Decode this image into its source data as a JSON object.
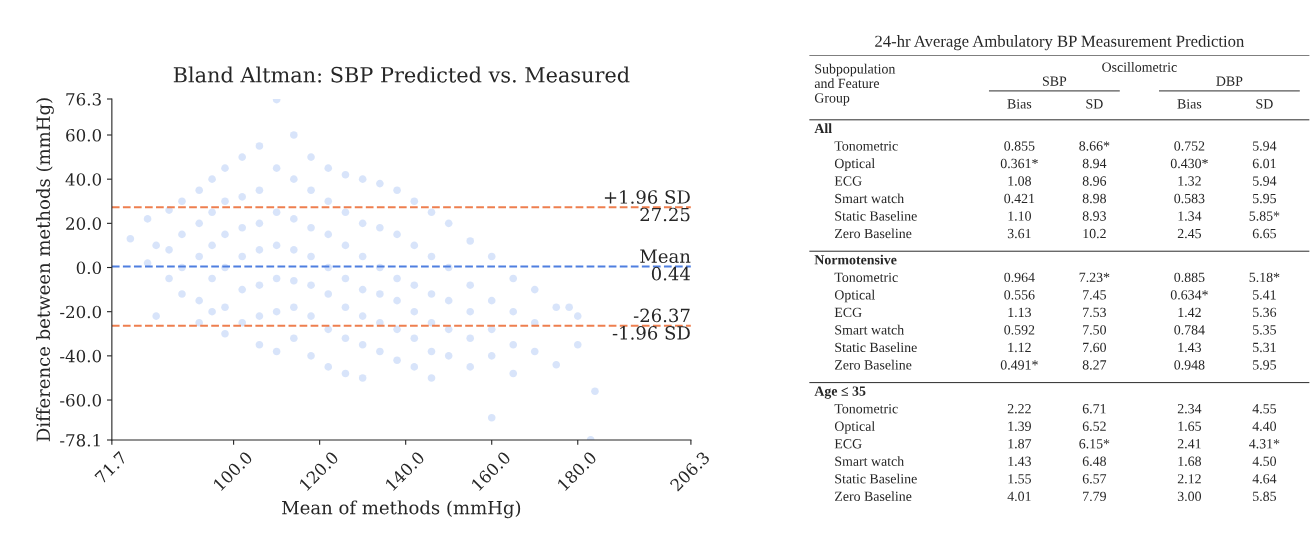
{
  "chart_data": [
    {
      "type": "scatter",
      "title": "Bland Altman: SBP Predicted vs. Measured",
      "xlabel": "Mean of methods (mmHg)",
      "ylabel": "Difference between methods (mmHg)",
      "series": [
        {
          "color": "#6495ed",
          "x": [
            76,
            80,
            80,
            82,
            82,
            85,
            85,
            85,
            88,
            88,
            88,
            88,
            92,
            92,
            92,
            92,
            92,
            95,
            95,
            95,
            95,
            95,
            98,
            98,
            98,
            98,
            98,
            98,
            102,
            102,
            102,
            102,
            102,
            102,
            106,
            106,
            106,
            106,
            106,
            106,
            106,
            110,
            110,
            110,
            110,
            110,
            110,
            110,
            114,
            114,
            114,
            114,
            114,
            114,
            114,
            118,
            118,
            118,
            118,
            118,
            118,
            118,
            122,
            122,
            122,
            122,
            122,
            122,
            122,
            126,
            126,
            126,
            126,
            126,
            126,
            126,
            130,
            130,
            130,
            130,
            130,
            130,
            130,
            134,
            134,
            134,
            134,
            134,
            134,
            138,
            138,
            138,
            138,
            138,
            138,
            142,
            142,
            142,
            142,
            142,
            142,
            146,
            146,
            146,
            146,
            146,
            146,
            150,
            150,
            150,
            150,
            150,
            155,
            155,
            155,
            155,
            155,
            160,
            160,
            160,
            160,
            160,
            165,
            165,
            165,
            165,
            170,
            170,
            170,
            175,
            175,
            180,
            180,
            183,
            184,
            178
          ],
          "values": [
            13,
            2,
            22,
            -22,
            10,
            26,
            -5,
            8,
            30,
            -12,
            15,
            0,
            35,
            20,
            -15,
            5,
            -25,
            40,
            25,
            10,
            -5,
            -20,
            45,
            30,
            15,
            0,
            -18,
            -30,
            50,
            32,
            18,
            5,
            -10,
            -25,
            55,
            35,
            20,
            8,
            -8,
            -22,
            -35,
            76,
            45,
            25,
            10,
            -5,
            -20,
            -38,
            60,
            40,
            22,
            8,
            -6,
            -18,
            -32,
            50,
            35,
            18,
            5,
            -8,
            -22,
            -40,
            45,
            30,
            15,
            0,
            -12,
            -28,
            -45,
            42,
            25,
            10,
            -5,
            -18,
            -32,
            -48,
            40,
            20,
            5,
            -10,
            -22,
            -35,
            -50,
            38,
            18,
            0,
            -12,
            -25,
            -38,
            35,
            15,
            -5,
            -15,
            -28,
            -42,
            30,
            10,
            -8,
            -20,
            -32,
            -45,
            25,
            5,
            -12,
            -25,
            -38,
            -50,
            20,
            0,
            -15,
            -28,
            -40,
            12,
            -8,
            -20,
            -32,
            -45,
            5,
            -15,
            -28,
            -40,
            -68,
            -5,
            -20,
            -35,
            -48,
            -10,
            -25,
            -38,
            -18,
            -44,
            -22,
            -35,
            -78,
            -56,
            -18
          ]
        }
      ],
      "xlim": [
        71.7,
        206.3
      ],
      "xticks": [
        71.7,
        {
          "value": 100,
          "label": "100.0"
        },
        {
          "value": 120,
          "label": "120.0"
        },
        {
          "value": 140,
          "label": "140.0"
        },
        {
          "value": 160,
          "label": "160.0"
        },
        {
          "value": 180,
          "label": "180.0"
        },
        206.3
      ],
      "ylim": [
        -78.1,
        76.3
      ],
      "yticks": [
        -78.1,
        {
          "value": -60,
          "label": "-60.0"
        },
        {
          "value": -40,
          "label": "-40.0"
        },
        {
          "value": -20,
          "label": "-20.0"
        },
        {
          "value": 0,
          "label": "0.0"
        },
        {
          "value": 20,
          "label": "20.0"
        },
        {
          "value": 40,
          "label": "40.0"
        },
        {
          "value": 60,
          "label": "60.0"
        },
        76.3
      ],
      "ref_lines": [
        {
          "axis": "y",
          "value": 27.25,
          "label": "+1.96 SD",
          "color": "#ee7f4f",
          "line_style": "dashed"
        },
        {
          "axis": "y",
          "value": 0.44,
          "label": "Mean",
          "color": "#4f7fe0",
          "line_style": "dashed"
        },
        {
          "axis": "y",
          "value": -26.37,
          "label": "-26.37",
          "color": "#ee7f4f",
          "line_style": "dashed"
        }
      ],
      "annotations": [
        {
          "text": "27.25",
          "y": 27.25
        },
        {
          "text": "0.44",
          "y": 0.44
        },
        {
          "text": "-1.96 SD",
          "y": -26.37
        }
      ]
    },
    {
      "type": "other",
      "title": "24-hr Average Ambulatory BP Measurement Prediction",
      "annotations": [
        "Subpopulation\nand Feature\nGroup",
        "Oscillometric",
        "SBP",
        "DBP",
        "Bias",
        "SD",
        "Bias",
        "SD",
        "All",
        "Tonometric",
        "0.855",
        "8.66*",
        "0.752",
        "5.94",
        "Optical",
        "0.361*",
        "8.94",
        "0.430*",
        "6.01",
        "ECG",
        "1.08",
        "8.96",
        "1.32",
        "5.94",
        "Smart watch",
        "0.421",
        "8.98",
        "0.583",
        "5.95",
        "Static Baseline",
        "1.10",
        "8.93",
        "1.34",
        "5.85*",
        "Zero Baseline",
        "3.61",
        "10.2",
        "2.45",
        "6.65",
        "Normotensive",
        "Tonometric",
        "0.964",
        "7.23*",
        "0.885",
        "5.18*",
        "Optical",
        "0.556",
        "7.45",
        "0.634*",
        "5.41",
        "ECG",
        "1.13",
        "7.53",
        "1.42",
        "5.36",
        "Smart watch",
        "0.592",
        "7.50",
        "0.784",
        "5.35",
        "Static Baseline",
        "1.12",
        "7.60",
        "1.43",
        "5.31",
        "Zero Baseline",
        "0.491*",
        "8.27",
        "0.948",
        "5.95",
        "Age ≤ 35",
        "Tonometric",
        "2.22",
        "6.71",
        "2.34",
        "4.55",
        "Optical",
        "1.39",
        "6.52",
        "1.65",
        "4.40",
        "ECG",
        "1.87",
        "6.15*",
        "2.41",
        "4.31*",
        "Smart watch",
        "1.43",
        "6.48",
        "1.68",
        "4.50",
        "Static Baseline",
        "1.55",
        "6.57",
        "2.12",
        "4.64",
        "Zero Baseline",
        "4.01",
        "7.79",
        "3.00",
        "5.85"
      ]
    }
  ]
}
